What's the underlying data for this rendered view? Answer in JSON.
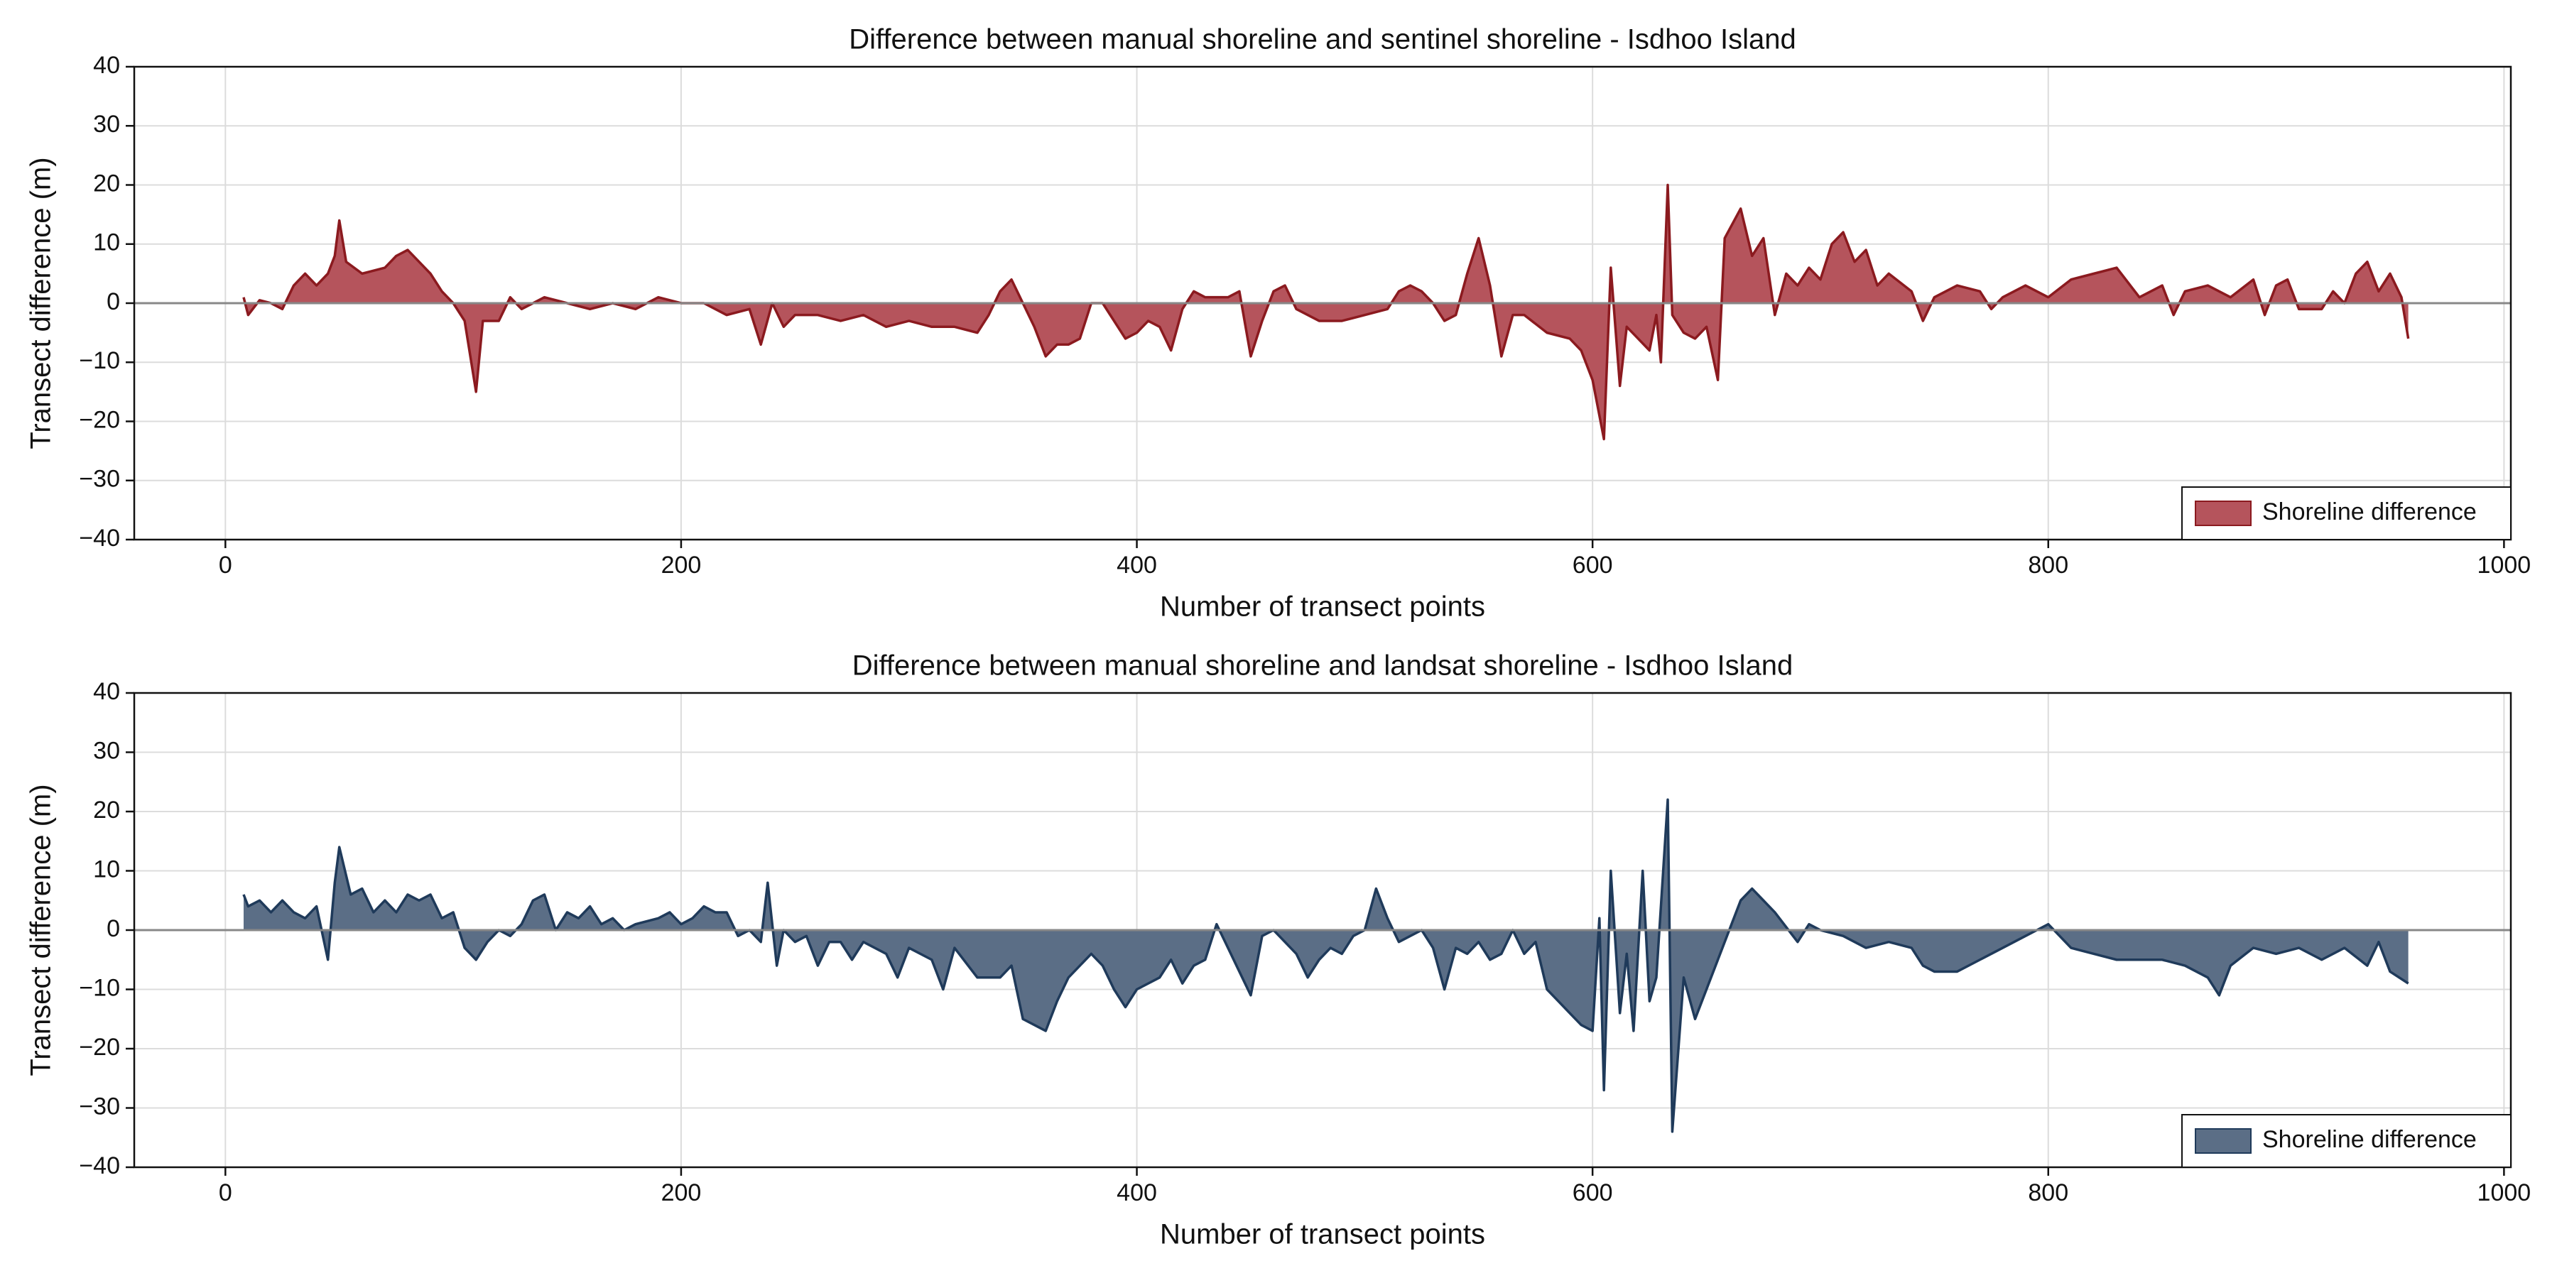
{
  "chart_data": [
    {
      "type": "area",
      "title": "Difference between manual shoreline and sentinel shoreline - Isdhoo Island",
      "x_label": "Number of transect points",
      "y_label": "Transect difference (m)",
      "xlim": [
        -40,
        1003
      ],
      "xticks": [
        0,
        200,
        400,
        600,
        800,
        1000
      ],
      "ylim": [
        -40,
        40
      ],
      "yticks": [
        {
          "value": -40,
          "label": "−40"
        },
        {
          "value": -30,
          "label": "−30"
        },
        {
          "value": -20,
          "label": "−20"
        },
        {
          "value": -10,
          "label": "−10"
        },
        0,
        10,
        20,
        30,
        40
      ],
      "grid": true,
      "legend": "lower right",
      "x": [
        8,
        10,
        15,
        20,
        25,
        30,
        35,
        40,
        45,
        48,
        50,
        53,
        60,
        70,
        75,
        80,
        85,
        90,
        95,
        100,
        105,
        110,
        113,
        120,
        125,
        130,
        140,
        150,
        160,
        170,
        180,
        190,
        200,
        210,
        220,
        230,
        235,
        240,
        245,
        250,
        260,
        270,
        280,
        290,
        300,
        310,
        320,
        330,
        335,
        340,
        345,
        350,
        355,
        360,
        365,
        370,
        375,
        380,
        385,
        390,
        395,
        400,
        405,
        410,
        415,
        420,
        425,
        430,
        440,
        445,
        450,
        455,
        460,
        465,
        470,
        480,
        490,
        500,
        510,
        515,
        520,
        525,
        530,
        535,
        540,
        545,
        550,
        555,
        560,
        565,
        570,
        580,
        590,
        595,
        600,
        605,
        608,
        612,
        615,
        620,
        625,
        628,
        630,
        633,
        635,
        640,
        645,
        650,
        655,
        658,
        665,
        670,
        675,
        680,
        685,
        690,
        695,
        700,
        705,
        710,
        715,
        720,
        725,
        730,
        740,
        745,
        750,
        760,
        770,
        775,
        780,
        790,
        800,
        810,
        820,
        830,
        840,
        850,
        855,
        860,
        870,
        880,
        890,
        895,
        900,
        905,
        910,
        920,
        925,
        930,
        935,
        940,
        945,
        950,
        955,
        958
      ],
      "series": [
        {
          "name": "Shoreline difference",
          "color": "#b5545c",
          "line_color": "#8b1a1f",
          "values": [
            1,
            -2,
            0.5,
            0,
            -1,
            3,
            5,
            3,
            5,
            8,
            14,
            7,
            5,
            6,
            8,
            9,
            7,
            5,
            2,
            0,
            -3,
            -15,
            -3,
            -3,
            1,
            -1,
            1,
            0,
            -1,
            0,
            -1,
            1,
            0,
            0,
            -2,
            -1,
            -7,
            0,
            -4,
            -2,
            -2,
            -3,
            -2,
            -4,
            -3,
            -4,
            -4,
            -5,
            -2,
            2,
            4,
            0,
            -4,
            -9,
            -7,
            -7,
            -6,
            0,
            0,
            -3,
            -6,
            -5,
            -3,
            -4,
            -8,
            -1,
            2,
            1,
            1,
            2,
            -9,
            -3,
            2,
            3,
            -1,
            -3,
            -3,
            -2,
            -1,
            2,
            3,
            2,
            0,
            -3,
            -2,
            5,
            11,
            3,
            -9,
            -2,
            -2,
            -5,
            -6,
            -8,
            -13,
            -23,
            6,
            -14,
            -4,
            -6,
            -8,
            -2,
            -10,
            20,
            -2,
            -5,
            -6,
            -4,
            -13,
            11,
            16,
            8,
            11,
            -2,
            5,
            3,
            6,
            4,
            10,
            12,
            7,
            9,
            3,
            5,
            2,
            -3,
            1,
            3,
            2,
            -1,
            1,
            3,
            1,
            4,
            5,
            6,
            1,
            3,
            -2,
            2,
            3,
            1,
            4,
            -2,
            3,
            4,
            -1,
            -1,
            2,
            0,
            5,
            7,
            2,
            5,
            1,
            -6
          ]
        }
      ]
    },
    {
      "type": "area",
      "title": "Difference between manual shoreline and landsat shoreline - Isdhoo Island",
      "x_label": "Number of transect points",
      "y_label": "Transect difference (m)",
      "xlim": [
        -40,
        1003
      ],
      "xticks": [
        0,
        200,
        400,
        600,
        800,
        1000
      ],
      "ylim": [
        -40,
        40
      ],
      "yticks": [
        {
          "value": -40,
          "label": "−40"
        },
        {
          "value": -30,
          "label": "−30"
        },
        {
          "value": -20,
          "label": "−20"
        },
        {
          "value": -10,
          "label": "−10"
        },
        0,
        10,
        20,
        30,
        40
      ],
      "grid": true,
      "legend": "lower right",
      "x": [
        8,
        10,
        15,
        20,
        25,
        30,
        35,
        40,
        45,
        48,
        50,
        55,
        60,
        65,
        70,
        75,
        80,
        85,
        90,
        95,
        100,
        105,
        110,
        115,
        120,
        125,
        130,
        135,
        140,
        145,
        150,
        155,
        160,
        165,
        170,
        175,
        180,
        190,
        195,
        200,
        205,
        210,
        215,
        220,
        225,
        230,
        235,
        238,
        242,
        245,
        250,
        255,
        260,
        265,
        270,
        275,
        280,
        290,
        295,
        300,
        310,
        315,
        320,
        330,
        340,
        345,
        350,
        355,
        360,
        365,
        370,
        380,
        385,
        390,
        395,
        400,
        410,
        415,
        420,
        425,
        430,
        435,
        440,
        445,
        450,
        455,
        460,
        465,
        470,
        475,
        480,
        485,
        490,
        495,
        500,
        505,
        510,
        515,
        520,
        525,
        530,
        535,
        540,
        545,
        550,
        555,
        560,
        565,
        570,
        575,
        580,
        585,
        590,
        595,
        600,
        603,
        605,
        608,
        612,
        615,
        618,
        622,
        625,
        628,
        633,
        635,
        640,
        645,
        650,
        655,
        660,
        665,
        670,
        675,
        680,
        690,
        695,
        700,
        710,
        720,
        730,
        740,
        745,
        750,
        760,
        770,
        780,
        790,
        795,
        800,
        805,
        810,
        820,
        830,
        840,
        850,
        860,
        870,
        875,
        880,
        890,
        900,
        910,
        920,
        930,
        940,
        945,
        950,
        958
      ],
      "series": [
        {
          "name": "Shoreline difference",
          "color": "#5b6e86",
          "line_color": "#1f3a5a",
          "values": [
            6,
            4,
            5,
            3,
            5,
            3,
            2,
            4,
            -5,
            8,
            14,
            6,
            7,
            3,
            5,
            3,
            6,
            5,
            6,
            2,
            3,
            -3,
            -5,
            -2,
            0,
            -1,
            1,
            5,
            6,
            0,
            3,
            2,
            4,
            1,
            2,
            0,
            1,
            2,
            3,
            1,
            2,
            4,
            3,
            3,
            -1,
            0,
            -2,
            8,
            -6,
            0,
            -2,
            -1,
            -6,
            -2,
            -2,
            -5,
            -2,
            -4,
            -8,
            -3,
            -5,
            -10,
            -3,
            -8,
            -8,
            -6,
            -15,
            -16,
            -17,
            -12,
            -8,
            -4,
            -6,
            -10,
            -13,
            -10,
            -8,
            -5,
            -9,
            -6,
            -5,
            1,
            -3,
            -7,
            -11,
            -1,
            0,
            -2,
            -4,
            -8,
            -5,
            -3,
            -4,
            -1,
            0,
            7,
            2,
            -2,
            -1,
            0,
            -3,
            -10,
            -3,
            -4,
            -2,
            -5,
            -4,
            0,
            -4,
            -2,
            -10,
            -12,
            -14,
            -16,
            -17,
            2,
            -27,
            10,
            -14,
            -4,
            -17,
            10,
            -12,
            -8,
            22,
            -34,
            -8,
            -15,
            -10,
            -5,
            0,
            5,
            7,
            5,
            3,
            -2,
            1,
            0,
            -1,
            -3,
            -2,
            -3,
            -6,
            -7,
            -7,
            -5,
            -3,
            -1,
            0,
            1,
            -1,
            -3,
            -4,
            -5,
            -5,
            -5,
            -6,
            -8,
            -11,
            -6,
            -3,
            -4,
            -3,
            -5,
            -3,
            -6,
            -2,
            -7,
            -9
          ]
        }
      ]
    }
  ]
}
